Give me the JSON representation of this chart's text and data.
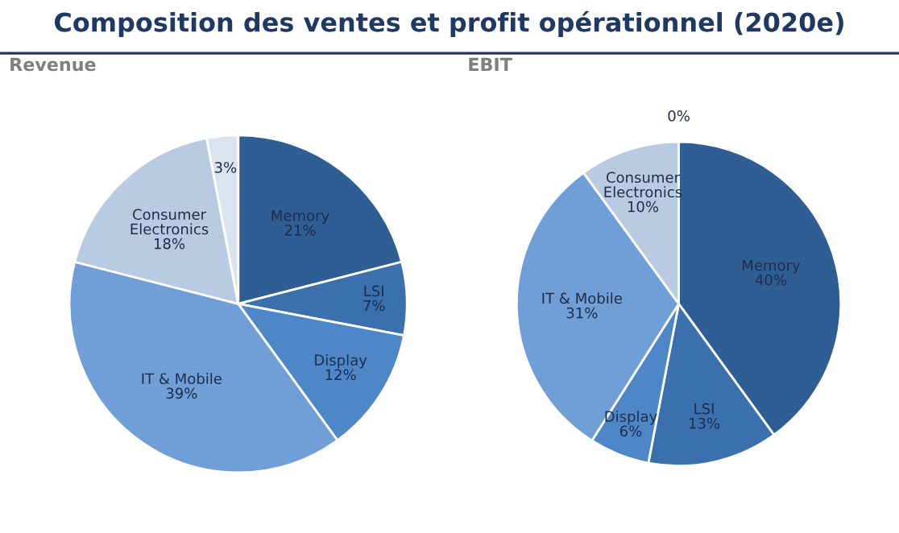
{
  "chart_data": [
    {
      "type": "pie",
      "title": "Revenue",
      "annotations": [
        "Composition des ventes et profit opérationnel (2020e)"
      ],
      "categories": [
        "Memory",
        "LSI",
        "Display",
        "IT & Mobile",
        "Consumer Electronics",
        null
      ],
      "values": [
        21,
        7,
        12,
        39,
        18,
        3
      ],
      "value_labels": [
        "21%",
        "7%",
        "12%",
        "39%",
        "18%",
        "3%"
      ],
      "colors": [
        "#2f5e94",
        "#3b70ae",
        "#4d87c7",
        "#6f9fd6",
        "#b9cbe3",
        "#dbe3ef"
      ]
    },
    {
      "type": "pie",
      "title": "EBIT",
      "categories": [
        null,
        "Memory",
        "LSI",
        "Display",
        "IT & Mobile",
        "Consumer Electronics"
      ],
      "values": [
        0,
        40,
        13,
        6,
        31,
        10
      ],
      "value_labels": [
        "0%",
        "40%",
        "13%",
        "6%",
        "31%",
        "10%"
      ],
      "colors": [
        "#dbe3ef",
        "#2f5e94",
        "#3b70ae",
        "#4d87c7",
        "#6f9fd6",
        "#b9cbe3"
      ]
    }
  ]
}
